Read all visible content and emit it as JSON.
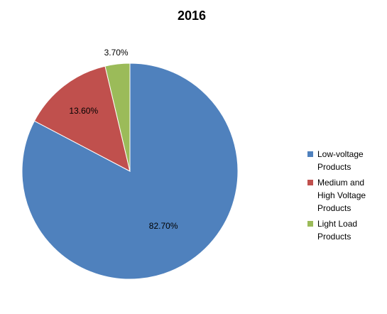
{
  "chart_data": {
    "type": "pie",
    "title": "2016",
    "categories": [
      "Low-voltage Products",
      "Medium and High Voltage Products",
      "Light Load Products"
    ],
    "values": [
      82.7,
      13.6,
      3.7
    ],
    "value_labels": [
      "82.70%",
      "13.60%",
      "3.70%"
    ],
    "colors": [
      "#4f81bd",
      "#c0504d",
      "#9bbb59"
    ],
    "legend": "right"
  }
}
